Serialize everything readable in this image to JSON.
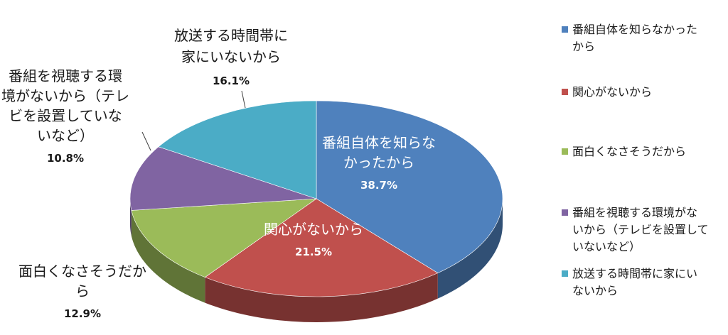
{
  "chart_data": {
    "type": "pie",
    "style": "3d",
    "categories": [
      "番組自体を知らなかったから",
      "関心がないから",
      "面白くなさそうだから",
      "番組を視聴する環境がないから（テレビを設置していないなど）",
      "放送する時間帯に家にいないから"
    ],
    "values": [
      38.7,
      21.5,
      12.9,
      10.8,
      16.1
    ],
    "value_labels": [
      "38.7%",
      "21.5%",
      "12.9%",
      "10.8%",
      "16.1%"
    ],
    "colors": [
      "#4F81BD",
      "#C0504D",
      "#9BBB59",
      "#8064A2",
      "#4BACC6"
    ],
    "legend_position": "right"
  },
  "slice_labels": [
    {
      "lines": [
        "番組自体を知らな",
        "かったから"
      ],
      "value": "38.7%"
    },
    {
      "lines": [
        "関心がないから"
      ],
      "value": "21.5%"
    },
    {
      "lines": [
        "面白くなさそうだか",
        "ら"
      ],
      "value": "12.9%"
    },
    {
      "lines": [
        "番組を視聴する環",
        "境がないから（テレ",
        "ビを設置していな",
        "いなど）"
      ],
      "value": "10.8%"
    },
    {
      "lines": [
        "放送する時間帯に",
        "家にいないから"
      ],
      "value": "16.1%"
    }
  ],
  "legend": [
    {
      "lines": [
        "番組自体を知らなかった",
        "から"
      ]
    },
    {
      "lines": [
        "関心がないから"
      ]
    },
    {
      "lines": [
        "面白くなさそうだから"
      ]
    },
    {
      "lines": [
        "番組を視聴する環境がな",
        "いから（テレビを設置して",
        "いないなど）"
      ]
    },
    {
      "lines": [
        "放送する時間帯に家にい",
        "ないから"
      ]
    }
  ]
}
